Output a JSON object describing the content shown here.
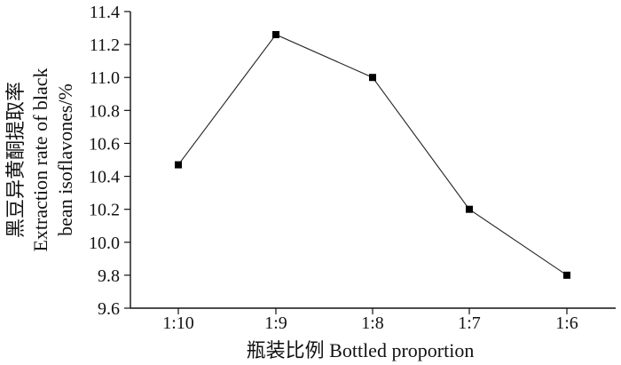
{
  "chart_data": {
    "type": "line",
    "categories": [
      "1:10",
      "1:9",
      "1:8",
      "1:7",
      "1:6"
    ],
    "series": [
      {
        "values": [
          10.47,
          11.26,
          11.0,
          10.2,
          9.8
        ]
      }
    ],
    "xlabel": "瓶装比例 Bottled proportion",
    "ylabel_lines": [
      "黑豆异黄酮提取率",
      "Extraction rate of black",
      "bean isoflavones/%"
    ],
    "ylim": [
      9.6,
      11.4
    ],
    "yticks": [
      9.6,
      9.8,
      10.0,
      10.2,
      10.4,
      10.6,
      10.8,
      11.0,
      11.2,
      11.4
    ],
    "ytick_labels": [
      "9.6",
      "9.8",
      "10.0",
      "10.2",
      "10.4",
      "10.6",
      "10.8",
      "11.0",
      "11.2",
      "11.4"
    ],
    "grid": false,
    "marker": "square",
    "line_color": "#222222",
    "marker_color": "#000000"
  }
}
